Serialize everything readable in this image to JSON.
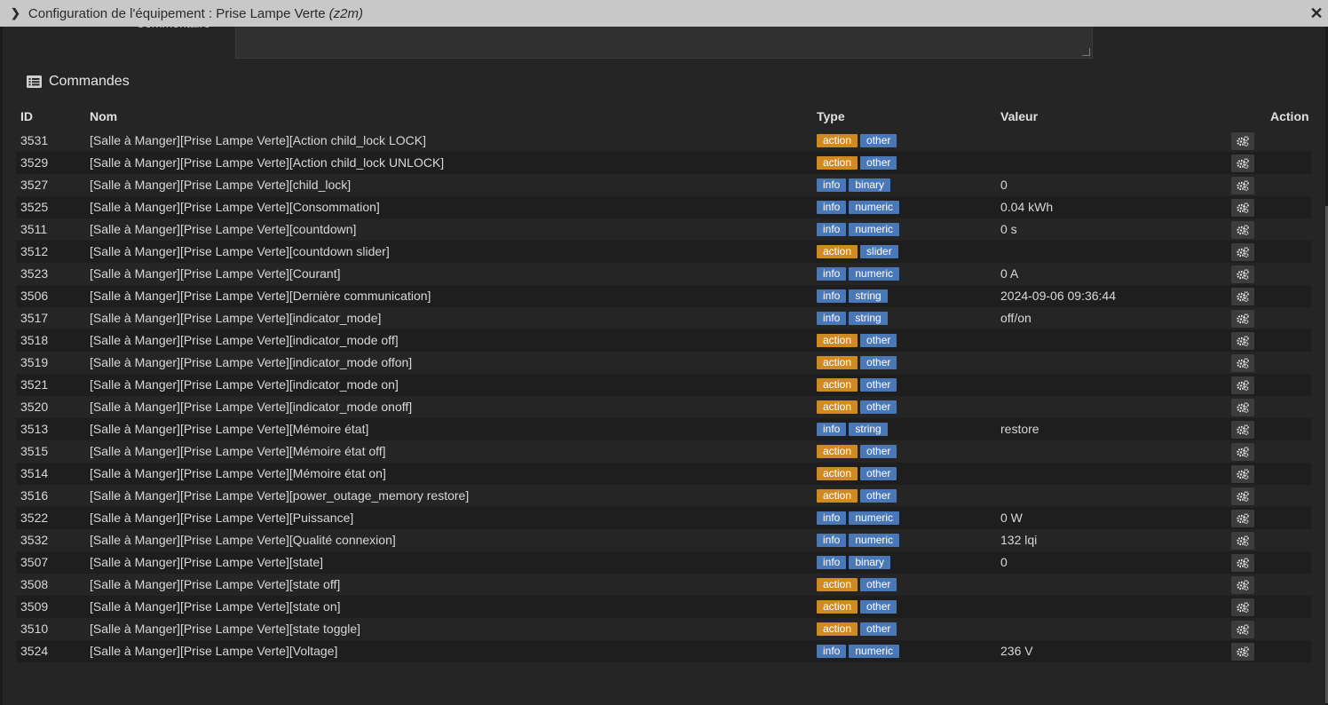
{
  "window": {
    "title": "Configuration de l'équipement : Prise Lampe Verte",
    "subtitle": "(z2m)"
  },
  "comment": {
    "label": "Commentaire"
  },
  "commands": {
    "title": "Commandes",
    "headers": {
      "id": "ID",
      "name": "Nom",
      "type": "Type",
      "value": "Valeur",
      "action": "Action"
    },
    "rows": [
      {
        "id": "3531",
        "name": "[Salle à Manger][Prise Lampe Verte][Action child_lock LOCK]",
        "type": "action",
        "subtype": "other",
        "value": ""
      },
      {
        "id": "3529",
        "name": "[Salle à Manger][Prise Lampe Verte][Action child_lock UNLOCK]",
        "type": "action",
        "subtype": "other",
        "value": ""
      },
      {
        "id": "3527",
        "name": "[Salle à Manger][Prise Lampe Verte][child_lock]",
        "type": "info",
        "subtype": "binary",
        "value": "0"
      },
      {
        "id": "3525",
        "name": "[Salle à Manger][Prise Lampe Verte][Consommation]",
        "type": "info",
        "subtype": "numeric",
        "value": "0.04 kWh"
      },
      {
        "id": "3511",
        "name": "[Salle à Manger][Prise Lampe Verte][countdown]",
        "type": "info",
        "subtype": "numeric",
        "value": "0 s"
      },
      {
        "id": "3512",
        "name": "[Salle à Manger][Prise Lampe Verte][countdown slider]",
        "type": "action",
        "subtype": "slider",
        "value": ""
      },
      {
        "id": "3523",
        "name": "[Salle à Manger][Prise Lampe Verte][Courant]",
        "type": "info",
        "subtype": "numeric",
        "value": "0 A"
      },
      {
        "id": "3506",
        "name": "[Salle à Manger][Prise Lampe Verte][Dernière communication]",
        "type": "info",
        "subtype": "string",
        "value": "2024-09-06 09:36:44"
      },
      {
        "id": "3517",
        "name": "[Salle à Manger][Prise Lampe Verte][indicator_mode]",
        "type": "info",
        "subtype": "string",
        "value": "off/on"
      },
      {
        "id": "3518",
        "name": "[Salle à Manger][Prise Lampe Verte][indicator_mode off]",
        "type": "action",
        "subtype": "other",
        "value": ""
      },
      {
        "id": "3519",
        "name": "[Salle à Manger][Prise Lampe Verte][indicator_mode offon]",
        "type": "action",
        "subtype": "other",
        "value": ""
      },
      {
        "id": "3521",
        "name": "[Salle à Manger][Prise Lampe Verte][indicator_mode on]",
        "type": "action",
        "subtype": "other",
        "value": ""
      },
      {
        "id": "3520",
        "name": "[Salle à Manger][Prise Lampe Verte][indicator_mode onoff]",
        "type": "action",
        "subtype": "other",
        "value": ""
      },
      {
        "id": "3513",
        "name": "[Salle à Manger][Prise Lampe Verte][Mémoire état]",
        "type": "info",
        "subtype": "string",
        "value": "restore"
      },
      {
        "id": "3515",
        "name": "[Salle à Manger][Prise Lampe Verte][Mémoire état off]",
        "type": "action",
        "subtype": "other",
        "value": ""
      },
      {
        "id": "3514",
        "name": "[Salle à Manger][Prise Lampe Verte][Mémoire état on]",
        "type": "action",
        "subtype": "other",
        "value": ""
      },
      {
        "id": "3516",
        "name": "[Salle à Manger][Prise Lampe Verte][power_outage_memory restore]",
        "type": "action",
        "subtype": "other",
        "value": ""
      },
      {
        "id": "3522",
        "name": "[Salle à Manger][Prise Lampe Verte][Puissance]",
        "type": "info",
        "subtype": "numeric",
        "value": "0 W"
      },
      {
        "id": "3532",
        "name": "[Salle à Manger][Prise Lampe Verte][Qualité connexion]",
        "type": "info",
        "subtype": "numeric",
        "value": "132 lqi"
      },
      {
        "id": "3507",
        "name": "[Salle à Manger][Prise Lampe Verte][state]",
        "type": "info",
        "subtype": "binary",
        "value": "0"
      },
      {
        "id": "3508",
        "name": "[Salle à Manger][Prise Lampe Verte][state off]",
        "type": "action",
        "subtype": "other",
        "value": ""
      },
      {
        "id": "3509",
        "name": "[Salle à Manger][Prise Lampe Verte][state on]",
        "type": "action",
        "subtype": "other",
        "value": ""
      },
      {
        "id": "3510",
        "name": "[Salle à Manger][Prise Lampe Verte][state toggle]",
        "type": "action",
        "subtype": "other",
        "value": ""
      },
      {
        "id": "3524",
        "name": "[Salle à Manger][Prise Lampe Verte][Voltage]",
        "type": "info",
        "subtype": "numeric",
        "value": "236 V"
      }
    ]
  },
  "colors": {
    "action_badge": "#d08a22",
    "info_badge": "#4a77b5",
    "subtype_badge": "#4a77b5"
  },
  "icons": {
    "collapse": "chevron-right-icon",
    "close": "close-icon",
    "section": "list-icon",
    "row_action": "gears-icon"
  }
}
